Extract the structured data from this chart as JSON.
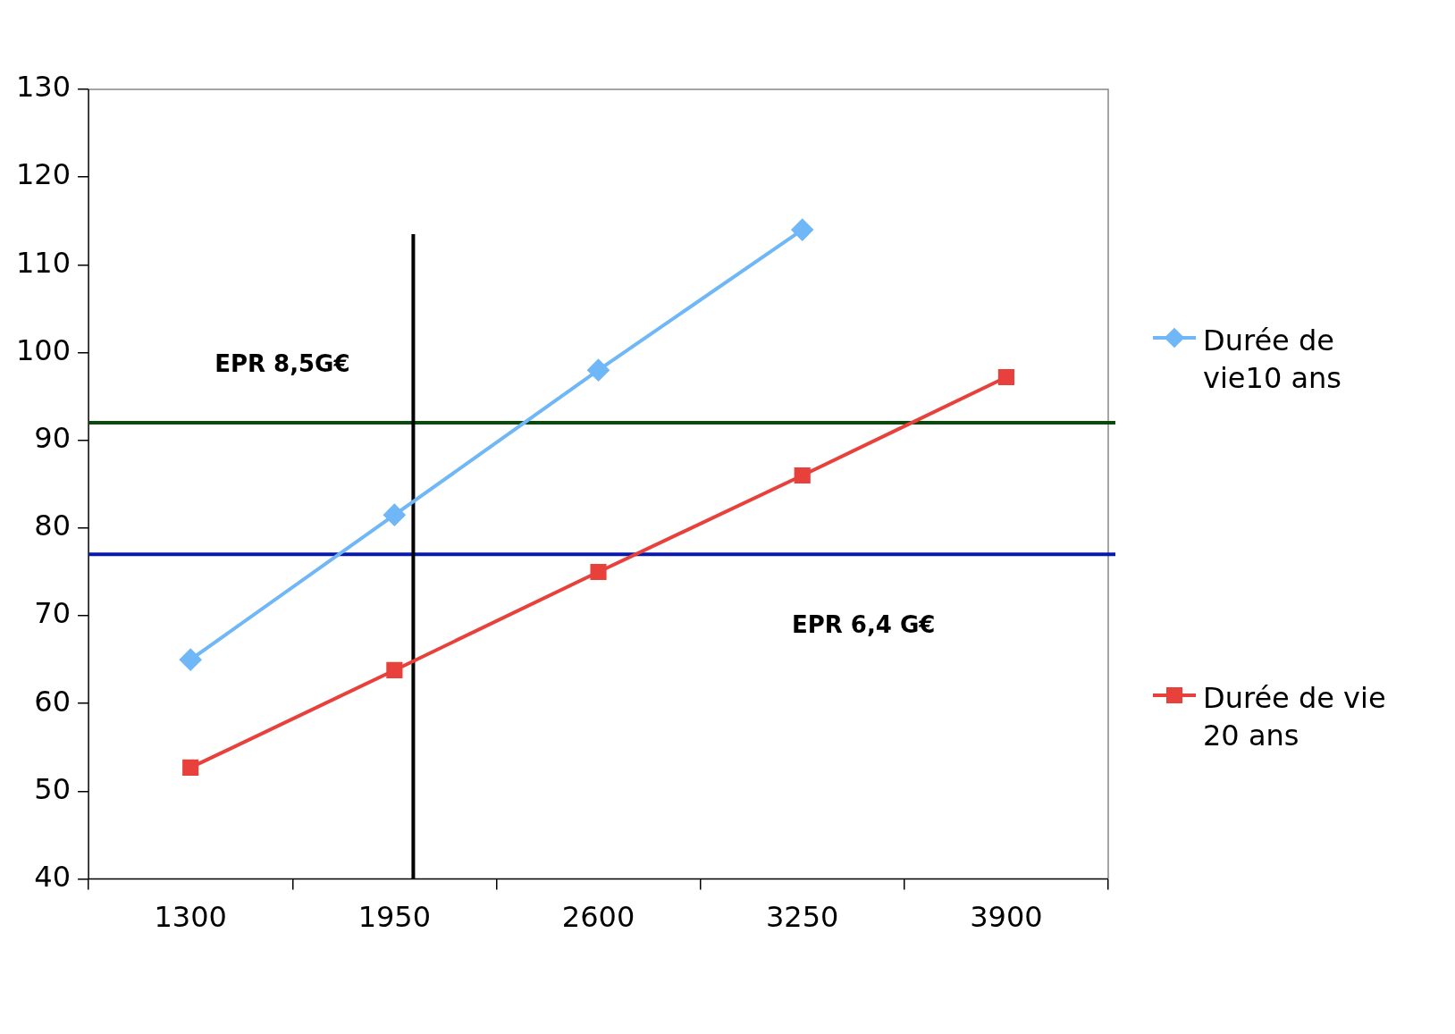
{
  "chart_data": {
    "type": "line",
    "x": [
      1300,
      1950,
      2600,
      3250,
      3900
    ],
    "xlim": [
      975,
      4225
    ],
    "xticks": [
      {
        "value": 975,
        "label": null
      },
      1300,
      {
        "value": 1625,
        "label": null
      },
      1950,
      {
        "value": 2275,
        "label": null
      },
      2600,
      {
        "value": 2925,
        "label": null
      },
      3250,
      {
        "value": 3575,
        "label": null
      },
      3900,
      {
        "value": 4225,
        "label": null
      }
    ],
    "ylim": [
      40,
      130
    ],
    "yticks": [
      40,
      50,
      60,
      70,
      80,
      90,
      100,
      110,
      120,
      130
    ],
    "series": [
      {
        "name": "Durée de vie10 ans",
        "color": "#6fb7f7",
        "marker": "diamond",
        "values": [
          65,
          81.5,
          98,
          114,
          null
        ]
      },
      {
        "name": "Durée de vie 20 ans",
        "color": "#e8413c",
        "marker": "square",
        "values": [
          52.7,
          63.8,
          75,
          86,
          97.2
        ]
      },
      {
        "color": "#000000",
        "marker": "none",
        "x": [
          2010,
          2010
        ],
        "values": [
          40,
          113.5
        ]
      }
    ],
    "ref_lines": [
      {
        "axis": "y",
        "value": 92,
        "color": "#0a4a0a"
      },
      {
        "axis": "y",
        "value": 77,
        "color": "#0a1aa8"
      }
    ],
    "annotations": [
      "EPR 8,5G€",
      "EPR 6,4 G€"
    ],
    "grid": false,
    "legend": "right",
    "line_style": "solid"
  }
}
